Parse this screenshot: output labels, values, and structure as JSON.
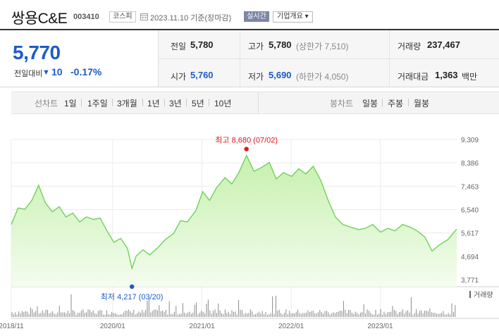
{
  "header": {
    "stock_name": "쌍용C&E",
    "stock_code": "003410",
    "market": "코스피",
    "date_text": "2023.11.10  기준(장마감)",
    "live_label": "실시간",
    "company_btn": "기업개요 ▾"
  },
  "price": {
    "current": "5,770",
    "change_label": "전일대비",
    "change_arrow": "▼",
    "change_value": "10",
    "change_pct": "-0.17%"
  },
  "info": {
    "prev_close_label": "전일",
    "prev_close": "5,780",
    "high_label": "고가",
    "high": "5,780",
    "upper_limit": "(상한가 7,510)",
    "volume_label": "거래량",
    "volume": "237,467",
    "open_label": "시가",
    "open": "5,760",
    "low_label": "저가",
    "low": "5,690",
    "lower_limit": "(하한가 4,050)",
    "amount_label": "거래대금",
    "amount": "1,363",
    "amount_unit": "백만"
  },
  "period_bar": {
    "line_chart_label": "선차트",
    "periods": [
      "1일",
      "1주일",
      "3개월",
      "1년",
      "3년",
      "5년",
      "10년"
    ],
    "active_period": "5년",
    "candle_chart_label": "봉차트",
    "candle_types": [
      "일봉",
      "주봉",
      "월봉"
    ]
  },
  "chart_data": {
    "type": "area",
    "y_ticks": [
      "9,309",
      "8,386",
      "7,463",
      "6,540",
      "5,617",
      "4,694",
      "3,771"
    ],
    "ylim": [
      3771,
      9309
    ],
    "x_tick_labels": [
      "2018/11",
      "2020/01",
      "2021/01",
      "2022/01",
      "2023/01"
    ],
    "x_tick_dates": [
      "2018-11-12",
      "2020-01-01",
      "2021-01-01",
      "2022-01-01",
      "2023-01-01"
    ],
    "xlim": [
      "2018-11-12",
      "2023-11-10"
    ],
    "max_label": "최고  8,680 (07/02)",
    "min_label": "최저  4,217 (03/20)",
    "max_point": {
      "date": "2021-07-02",
      "value": 8680
    },
    "min_point": {
      "date": "2020-03-20",
      "value": 4217
    },
    "volume_label": "거래량",
    "line_color": "#6ed25a",
    "fill_color": "#c6f0ad",
    "volume_color": "#8a8a8a",
    "max_marker_color": "#e8141e",
    "min_marker_color": "#1e5bc8",
    "series": [
      {
        "values": [
          {
            "date": "2018-11-12",
            "value": 5950
          },
          {
            "date": "2018-12-10",
            "value": 6600
          },
          {
            "date": "2019-01-07",
            "value": 6550
          },
          {
            "date": "2019-02-04",
            "value": 6900
          },
          {
            "date": "2019-03-04",
            "value": 7500
          },
          {
            "date": "2019-04-01",
            "value": 6800
          },
          {
            "date": "2019-04-29",
            "value": 6450
          },
          {
            "date": "2019-05-27",
            "value": 6650
          },
          {
            "date": "2019-06-24",
            "value": 6250
          },
          {
            "date": "2019-07-22",
            "value": 6400
          },
          {
            "date": "2019-08-19",
            "value": 6050
          },
          {
            "date": "2019-09-16",
            "value": 6250
          },
          {
            "date": "2019-10-14",
            "value": 6150
          },
          {
            "date": "2019-11-11",
            "value": 6200
          },
          {
            "date": "2019-12-09",
            "value": 5700
          },
          {
            "date": "2020-01-06",
            "value": 5250
          },
          {
            "date": "2020-02-03",
            "value": 5400
          },
          {
            "date": "2020-03-02",
            "value": 5000
          },
          {
            "date": "2020-03-20",
            "value": 4217
          },
          {
            "date": "2020-04-06",
            "value": 4700
          },
          {
            "date": "2020-05-04",
            "value": 4950
          },
          {
            "date": "2020-06-01",
            "value": 4750
          },
          {
            "date": "2020-07-06",
            "value": 5050
          },
          {
            "date": "2020-08-03",
            "value": 5350
          },
          {
            "date": "2020-09-07",
            "value": 5600
          },
          {
            "date": "2020-10-05",
            "value": 6100
          },
          {
            "date": "2020-11-02",
            "value": 6050
          },
          {
            "date": "2020-12-07",
            "value": 6500
          },
          {
            "date": "2021-01-04",
            "value": 7250
          },
          {
            "date": "2021-02-01",
            "value": 6900
          },
          {
            "date": "2021-03-01",
            "value": 7400
          },
          {
            "date": "2021-04-05",
            "value": 7800
          },
          {
            "date": "2021-05-03",
            "value": 7550
          },
          {
            "date": "2021-06-01",
            "value": 8000
          },
          {
            "date": "2021-07-02",
            "value": 8680
          },
          {
            "date": "2021-08-02",
            "value": 8050
          },
          {
            "date": "2021-09-01",
            "value": 8200
          },
          {
            "date": "2021-10-04",
            "value": 8400
          },
          {
            "date": "2021-11-01",
            "value": 7750
          },
          {
            "date": "2021-12-01",
            "value": 8000
          },
          {
            "date": "2022-01-03",
            "value": 7850
          },
          {
            "date": "2022-02-01",
            "value": 8150
          },
          {
            "date": "2022-03-02",
            "value": 7950
          },
          {
            "date": "2022-04-01",
            "value": 8250
          },
          {
            "date": "2022-05-02",
            "value": 7700
          },
          {
            "date": "2022-06-02",
            "value": 6900
          },
          {
            "date": "2022-07-01",
            "value": 6250
          },
          {
            "date": "2022-08-01",
            "value": 5950
          },
          {
            "date": "2022-09-01",
            "value": 5850
          },
          {
            "date": "2022-10-04",
            "value": 5750
          },
          {
            "date": "2022-11-01",
            "value": 5800
          },
          {
            "date": "2022-12-01",
            "value": 5950
          },
          {
            "date": "2023-01-02",
            "value": 5650
          },
          {
            "date": "2023-02-01",
            "value": 5800
          },
          {
            "date": "2023-03-02",
            "value": 5700
          },
          {
            "date": "2023-04-03",
            "value": 5950
          },
          {
            "date": "2023-05-02",
            "value": 5850
          },
          {
            "date": "2023-06-01",
            "value": 5700
          },
          {
            "date": "2023-07-03",
            "value": 5450
          },
          {
            "date": "2023-08-01",
            "value": 4900
          },
          {
            "date": "2023-09-01",
            "value": 5150
          },
          {
            "date": "2023-10-04",
            "value": 5350
          },
          {
            "date": "2023-11-10",
            "value": 5770
          }
        ]
      }
    ]
  }
}
